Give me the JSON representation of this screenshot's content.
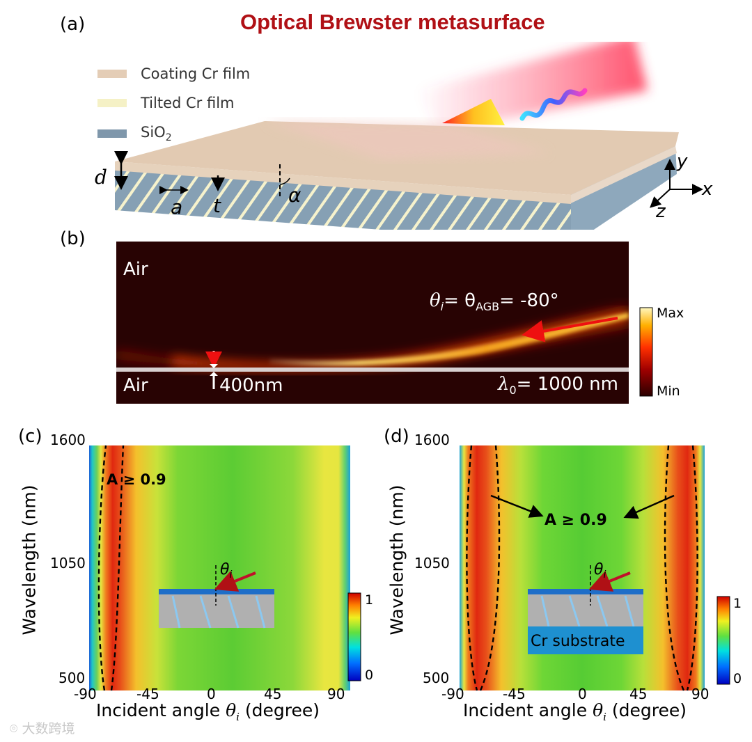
{
  "title": "Optical Brewster metasurface",
  "panel_labels": {
    "a": "(a)",
    "b": "(b)",
    "c": "(c)",
    "d": "(d)"
  },
  "legend": [
    {
      "label": "Coating Cr film",
      "color": "#e4cdb6"
    },
    {
      "label": "Tilted Cr film",
      "color": "#f5f1c6"
    },
    {
      "label": "SiO",
      "sub": "2",
      "color": "#7f97ab"
    }
  ],
  "schematic_symbols": {
    "d": "d",
    "a": "a",
    "t": "t",
    "alpha": "α",
    "x": "x",
    "y": "y",
    "z": "z"
  },
  "field_map": {
    "air_top": "Air",
    "air_bottom": "Air",
    "angle_label_theta": "θ",
    "angle_label_sub": "i",
    "angle_label_mid": "= θ",
    "angle_label_sub2": "AGB",
    "angle_label_value": "= -80°",
    "thickness": "400nm",
    "wavelength_symbol": "λ",
    "wavelength_sub": "0",
    "wavelength_value": "= 1000 nm",
    "colorbar_max": "Max",
    "colorbar_min": "Min"
  },
  "watermark": "大数跨境",
  "chart_data": [
    {
      "type": "heatmap",
      "panel": "(c)",
      "xlabel": "Incident angle θi (degree)",
      "ylabel": "Wavelength (nm)",
      "x_ticks": [
        "-90",
        "-45",
        "0",
        "45",
        "90"
      ],
      "y_ticks": [
        "500",
        "1050",
        "1600"
      ],
      "xlim": [
        -90,
        90
      ],
      "ylim": [
        500,
        1600
      ],
      "colorbar": {
        "min_label": "0",
        "max_label": "1",
        "range": [
          0,
          1
        ]
      },
      "annotation": "A ≥ 0.9",
      "inset_label": "θi",
      "high_absorption_region_deg": [
        -85,
        -65
      ]
    },
    {
      "type": "heatmap",
      "panel": "(d)",
      "xlabel": "Incident angle θi (degree)",
      "ylabel": "Wavelength (nm)",
      "x_ticks": [
        "-90",
        "-45",
        "0",
        "45",
        "90"
      ],
      "y_ticks": [
        "500",
        "1050",
        "1600"
      ],
      "xlim": [
        -90,
        90
      ],
      "ylim": [
        500,
        1600
      ],
      "colorbar": {
        "min_label": "0",
        "max_label": "1",
        "range": [
          0,
          1
        ]
      },
      "annotation": "A ≥ 0.9",
      "inset_label": "θi",
      "inset_substrate": "Cr substrate",
      "high_absorption_region_deg": [
        [
          -85,
          -65
        ],
        [
          65,
          85
        ]
      ]
    }
  ]
}
